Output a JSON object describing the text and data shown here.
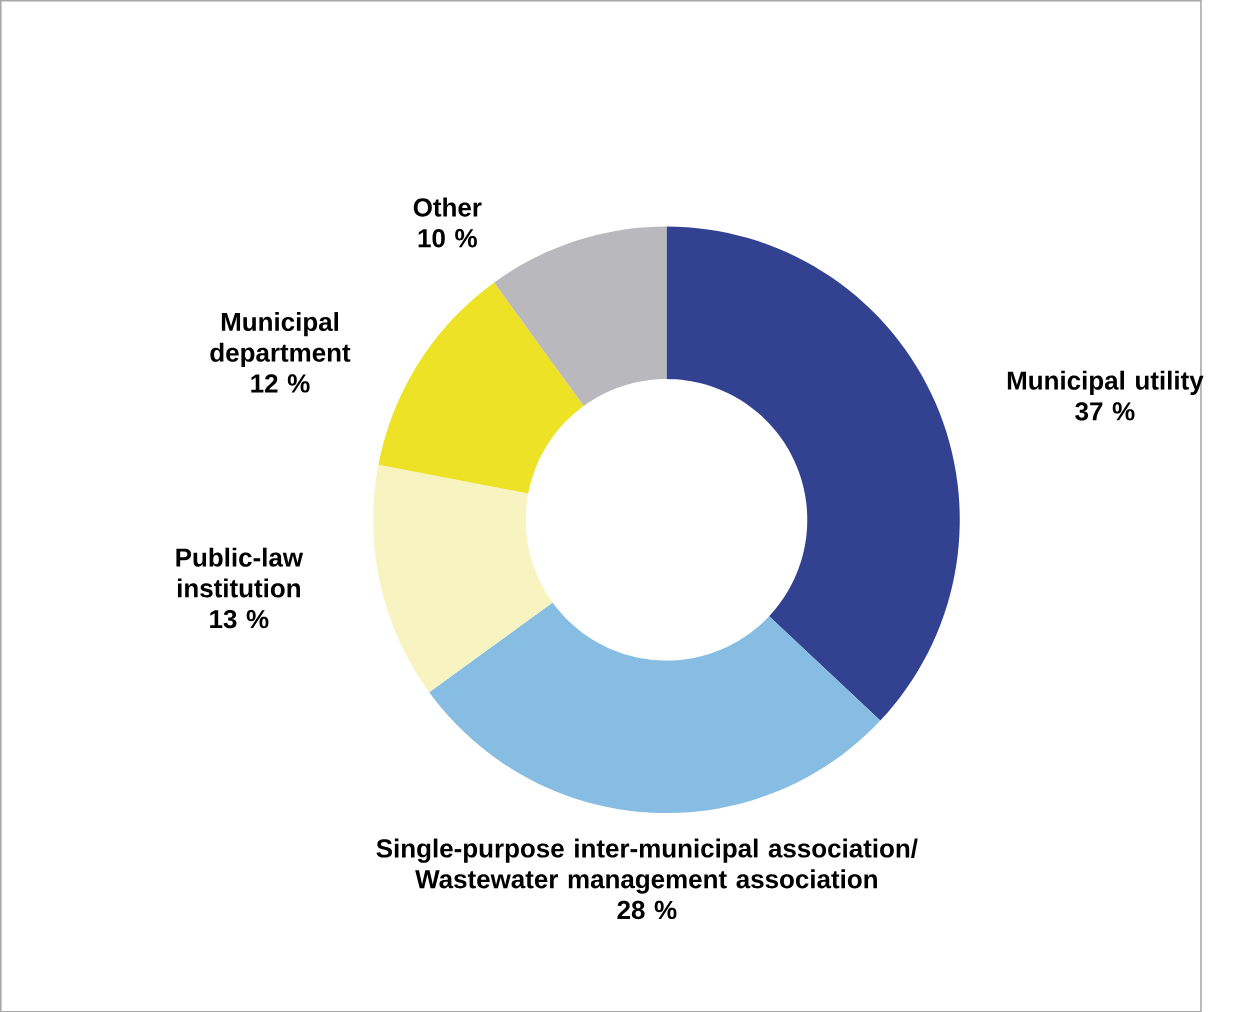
{
  "chart_data": {
    "type": "donut",
    "categories": [
      "Municipal utility",
      "Single-purpose inter-municipal association/ Wastewater management association",
      "Public-law institution",
      "Municipal department",
      "Other"
    ],
    "values": [
      37,
      28,
      13,
      12,
      10
    ],
    "value_labels": [
      "37 %",
      "28 %",
      "13 %",
      "12 %",
      "10 %"
    ],
    "colors": [
      "#334191",
      "#88bde3",
      "#f8f4c1",
      "#ede225",
      "#b9b9bd"
    ]
  }
}
